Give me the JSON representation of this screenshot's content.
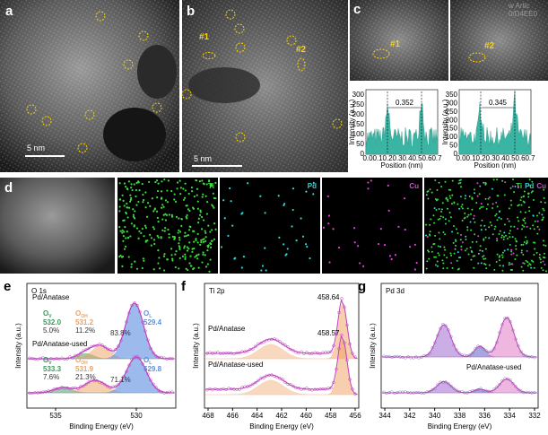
{
  "watermark": [
    "w Artic",
    "0/D4EE0"
  ],
  "a": {
    "label": "a",
    "scale": "5 nm"
  },
  "b": {
    "label": "b",
    "scale": "5 nm",
    "markers": [
      "#1",
      "#2"
    ]
  },
  "c": {
    "label": "c",
    "markers": [
      "#1",
      "#2"
    ],
    "profiles": [
      {
        "distance": "0.352",
        "ylabel": "Intensity (a.u.)",
        "xlabel": "Position (nm)",
        "xticks": [
          "0.0",
          "0.1",
          "0.2",
          "0.3",
          "0.4",
          "0.5",
          "0.6",
          "0.7"
        ],
        "yticks": [
          "0",
          "50",
          "100",
          "150",
          "200",
          "250",
          "300"
        ]
      },
      {
        "distance": "0.345",
        "ylabel": "Intensity (a.u.)",
        "xlabel": "Position (nm)",
        "xticks": [
          "0.0",
          "0.1",
          "0.2",
          "0.3",
          "0.4",
          "0.5",
          "0.6",
          "0.7"
        ],
        "yticks": [
          "0",
          "50",
          "100",
          "150",
          "200",
          "250",
          "300",
          "350"
        ]
      }
    ]
  },
  "d": {
    "label": "d",
    "maps": [
      "Ti",
      "Pd",
      "Cu"
    ],
    "overlay": [
      "Ti",
      "Pd",
      "Cu"
    ]
  },
  "e": {
    "label": "e",
    "title": "O 1s",
    "ylabel": "Intensity (a.u.)",
    "xlabel": "Binding Energy (eV)",
    "xticks": [
      "535",
      "530"
    ],
    "samples": [
      {
        "name": "Pd/Anatase",
        "peaks": [
          {
            "symbol": "O",
            "sub": "V",
            "energy": "532.0",
            "share": "5.0%"
          },
          {
            "symbol": "O",
            "sub": "OH",
            "energy": "531.2",
            "share": "11.2%"
          },
          {
            "symbol": "O",
            "sub": "L",
            "energy": "529.4",
            "share": "83.8%"
          }
        ]
      },
      {
        "name": "Pd/Anatase-used",
        "peaks": [
          {
            "symbol": "O",
            "sub": "V",
            "energy": "533.3",
            "share": "7.6%"
          },
          {
            "symbol": "O",
            "sub": "OH",
            "energy": "531.9",
            "share": "21.3%"
          },
          {
            "symbol": "O",
            "sub": "L",
            "energy": "529.8",
            "share": "71.1%"
          }
        ]
      }
    ]
  },
  "f": {
    "label": "f",
    "title": "Ti 2p",
    "ylabel": "Intensity (a.u.)",
    "xlabel": "Binding Energy (eV)",
    "xticks": [
      "468",
      "466",
      "464",
      "462",
      "460",
      "458",
      "456"
    ],
    "samples": [
      {
        "name": "Pd/Anatase",
        "energy": "458.64"
      },
      {
        "name": "Pd/Anatase-used",
        "energy": "458.57"
      }
    ]
  },
  "g": {
    "label": "g",
    "title": "Pd 3d",
    "ylabel": "Intensity (a.u.)",
    "xlabel": "Binding Energy (eV)",
    "xticks": [
      "344",
      "342",
      "340",
      "338",
      "336",
      "334",
      "332"
    ],
    "samples": [
      {
        "name": "Pd/Anatase"
      },
      {
        "name": "Pd/Anatase-used"
      }
    ]
  }
}
